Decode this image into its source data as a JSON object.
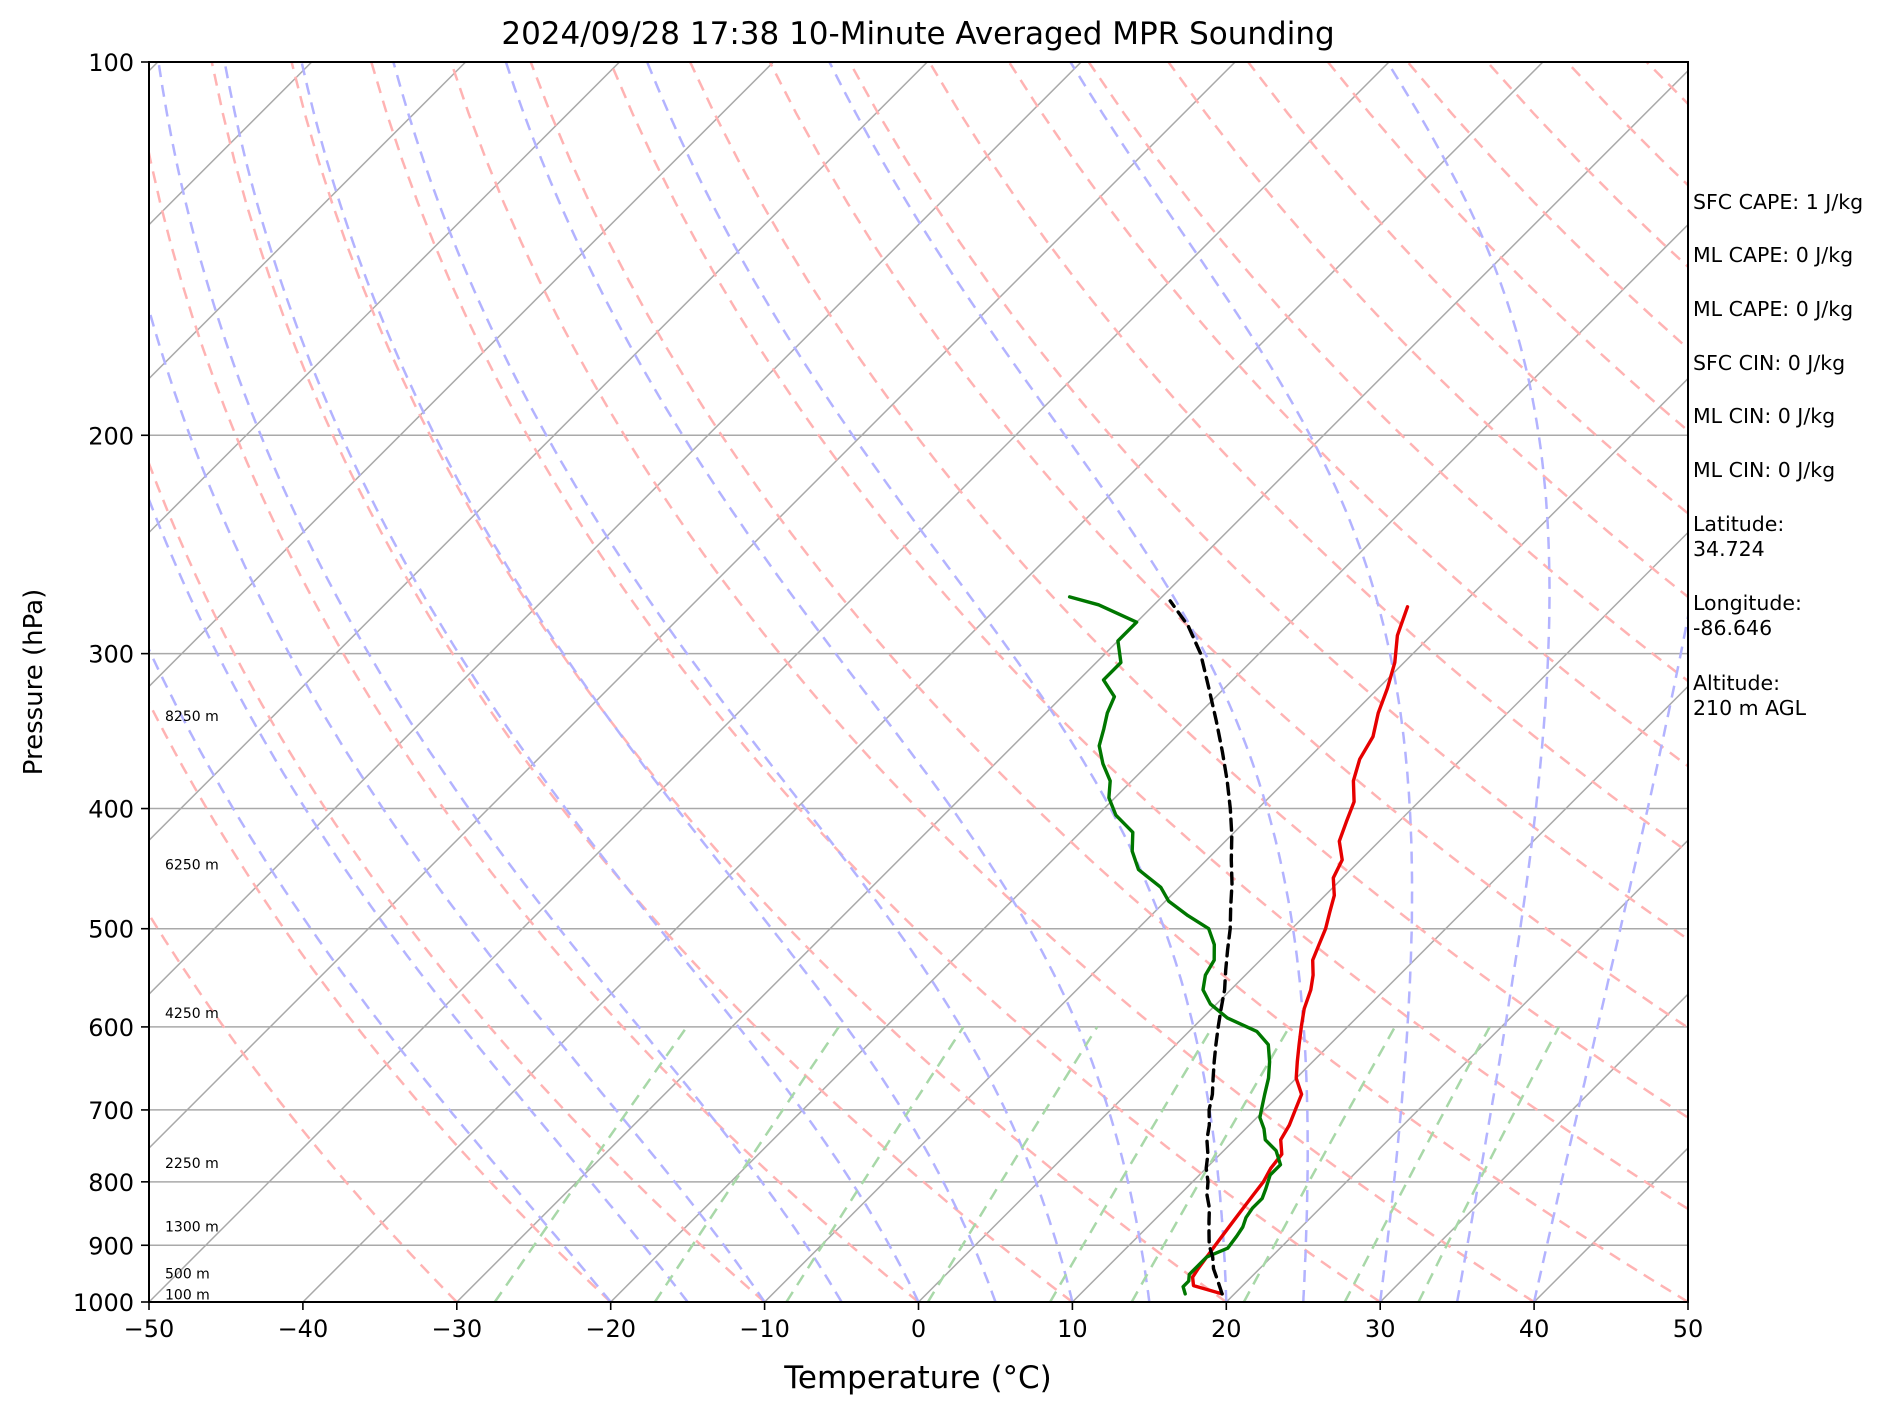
{
  "chart_data": {
    "type": "line",
    "title": "2024/09/28 17:38 10-Minute Averaged MPR Sounding",
    "xlabel": "Temperature (°C)",
    "ylabel": "Pressure (hPa)",
    "xlim": [
      -50,
      50
    ],
    "ylim": [
      1000,
      100
    ],
    "y_scale": "log",
    "skew": "skew-T (isotherms tilted to the right)",
    "xticks": [
      "−50",
      "−40",
      "−30",
      "−20",
      "−10",
      "0",
      "10",
      "20",
      "30",
      "40",
      "50"
    ],
    "xtick_values": [
      -50,
      -40,
      -30,
      -20,
      -10,
      0,
      10,
      20,
      30,
      40,
      50
    ],
    "yticks": [
      "100",
      "200",
      "300",
      "400",
      "500",
      "600",
      "700",
      "800",
      "900",
      "1000"
    ],
    "ytick_values": [
      100,
      200,
      300,
      400,
      500,
      600,
      700,
      800,
      900,
      1000
    ],
    "grid": true,
    "height_labels": [
      {
        "text": "8250 m",
        "p": 340
      },
      {
        "text": "6250 m",
        "p": 448
      },
      {
        "text": "4250 m",
        "p": 590
      },
      {
        "text": "2250 m",
        "p": 780
      },
      {
        "text": "1300 m",
        "p": 877
      },
      {
        "text": "500 m",
        "p": 957
      },
      {
        "text": "100 m",
        "p": 995
      }
    ],
    "series": [
      {
        "role": "temperature",
        "color": "#e60000",
        "points": [
          [
            19.2,
            985
          ],
          [
            16.8,
            970
          ],
          [
            16.2,
            955
          ],
          [
            16.0,
            940
          ],
          [
            15.8,
            920
          ],
          [
            15.6,
            900
          ],
          [
            15.4,
            880
          ],
          [
            15.2,
            860
          ],
          [
            15.0,
            840
          ],
          [
            14.8,
            820
          ],
          [
            14.6,
            800
          ],
          [
            14.2,
            780
          ],
          [
            14.0,
            760
          ],
          [
            13.0,
            740
          ],
          [
            12.6,
            720
          ],
          [
            12.0,
            700
          ],
          [
            11.4,
            680
          ],
          [
            10.0,
            660
          ],
          [
            9.0,
            640
          ],
          [
            8.0,
            620
          ],
          [
            7.0,
            600
          ],
          [
            6.0,
            580
          ],
          [
            5.2,
            560
          ],
          [
            4.4,
            545
          ],
          [
            3.4,
            530
          ],
          [
            2.8,
            515
          ],
          [
            2.2,
            500
          ],
          [
            1.4,
            485
          ],
          [
            0.6,
            470
          ],
          [
            -0.6,
            455
          ],
          [
            -1.2,
            440
          ],
          [
            -2.6,
            425
          ],
          [
            -3.4,
            410
          ],
          [
            -4.2,
            395
          ],
          [
            -5.6,
            380
          ],
          [
            -6.6,
            365
          ],
          [
            -7.2,
            350
          ],
          [
            -8.4,
            335
          ],
          [
            -9.4,
            320
          ],
          [
            -10.6,
            305
          ],
          [
            -12.2,
            290
          ],
          [
            -13.4,
            275
          ]
        ]
      },
      {
        "role": "dewpoint",
        "color": "#007700",
        "points": [
          [
            16.8,
            985
          ],
          [
            16.2,
            972
          ],
          [
            16.2,
            962
          ],
          [
            15.8,
            950
          ],
          [
            15.8,
            935
          ],
          [
            15.8,
            920
          ],
          [
            16.6,
            905
          ],
          [
            16.4,
            885
          ],
          [
            16.2,
            870
          ],
          [
            15.8,
            855
          ],
          [
            15.6,
            840
          ],
          [
            15.6,
            825
          ],
          [
            15.2,
            810
          ],
          [
            14.6,
            790
          ],
          [
            14.6,
            775
          ],
          [
            13.4,
            755
          ],
          [
            12.0,
            740
          ],
          [
            11.2,
            725
          ],
          [
            10.2,
            710
          ],
          [
            9.8,
            700
          ],
          [
            9.0,
            680
          ],
          [
            8.2,
            660
          ],
          [
            7.2,
            640
          ],
          [
            6.0,
            620
          ],
          [
            4.4,
            605
          ],
          [
            1.6,
            590
          ],
          [
            -0.4,
            575
          ],
          [
            -1.8,
            560
          ],
          [
            -2.6,
            545
          ],
          [
            -3.0,
            530
          ],
          [
            -4.0,
            515
          ],
          [
            -5.4,
            500
          ],
          [
            -7.6,
            488
          ],
          [
            -9.8,
            475
          ],
          [
            -11.2,
            463
          ],
          [
            -13.8,
            448
          ],
          [
            -15.4,
            433
          ],
          [
            -16.6,
            418
          ],
          [
            -18.8,
            405
          ],
          [
            -20.4,
            392
          ],
          [
            -21.4,
            380
          ],
          [
            -23.0,
            368
          ],
          [
            -24.4,
            356
          ],
          [
            -25.2,
            345
          ],
          [
            -26.0,
            335
          ],
          [
            -26.6,
            325
          ],
          [
            -28.4,
            315
          ],
          [
            -28.4,
            305
          ],
          [
            -30.0,
            293
          ],
          [
            -30.0,
            283
          ],
          [
            -33.6,
            274
          ],
          [
            -36.0,
            270
          ]
        ]
      },
      {
        "role": "parcel",
        "color": "#000000",
        "dashed": true,
        "points": [
          [
            19.2,
            985
          ],
          [
            18.0,
            960
          ],
          [
            17.0,
            940
          ],
          [
            16.2,
            920
          ],
          [
            15.2,
            900
          ],
          [
            14.4,
            880
          ],
          [
            13.6,
            860
          ],
          [
            12.8,
            840
          ],
          [
            11.8,
            820
          ],
          [
            11.0,
            800
          ],
          [
            10.0,
            780
          ],
          [
            9.2,
            760
          ],
          [
            8.2,
            740
          ],
          [
            7.4,
            720
          ],
          [
            6.4,
            700
          ],
          [
            5.6,
            680
          ],
          [
            4.6,
            660
          ],
          [
            3.6,
            640
          ],
          [
            2.6,
            620
          ],
          [
            1.6,
            600
          ],
          [
            0.6,
            580
          ],
          [
            -0.4,
            560
          ],
          [
            -1.6,
            540
          ],
          [
            -2.8,
            520
          ],
          [
            -4.0,
            500
          ],
          [
            -5.4,
            480
          ],
          [
            -6.8,
            460
          ],
          [
            -8.4,
            440
          ],
          [
            -10.0,
            420
          ],
          [
            -11.8,
            400
          ],
          [
            -13.8,
            380
          ],
          [
            -16.0,
            360
          ],
          [
            -18.4,
            340
          ],
          [
            -21.0,
            320
          ],
          [
            -23.8,
            300
          ],
          [
            -26.4,
            285
          ],
          [
            -29.2,
            272
          ]
        ]
      }
    ],
    "reference_lines": {
      "isotherms": "gray solid",
      "dry_adiabats": "red dashed",
      "moist_adiabats": "blue dashed",
      "mixing_ratio": "green dashed"
    }
  },
  "info_panel": [
    "SFC CAPE: 1 J/kg",
    "ML CAPE: 0 J/kg",
    "ML CAPE: 0 J/kg",
    "SFC CIN: 0 J/kg",
    "ML CIN: 0 J/kg",
    "ML CIN: 0 J/kg",
    "Latitude:",
    "34.724",
    "Longitude:",
    "-86.646",
    "Altitude:",
    "210 m AGL"
  ],
  "colors": {
    "isotherm": "#a9a9a9",
    "dry_adiabat": "#ffb3b3",
    "moist_adiabat": "#b3b3ff",
    "mixing_ratio": "#a8d8a8",
    "temperature": "#e60000",
    "dewpoint": "#007700",
    "parcel": "#000000"
  }
}
